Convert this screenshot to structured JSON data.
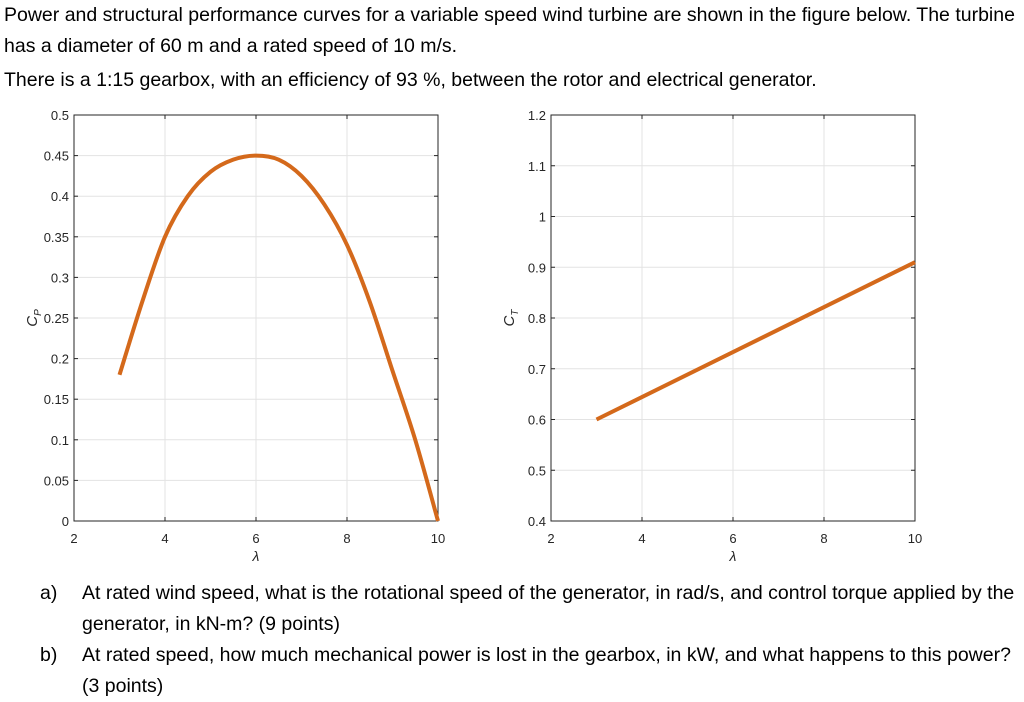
{
  "intro": {
    "line1": "Power and structural performance curves for a variable speed wind turbine are shown in the figure below. The turbine has a diameter of 60 m and a rated speed of 10 m/s.",
    "line2": "There is a 1:15 gearbox, with an efficiency of 93 %, between the rotor and electrical generator."
  },
  "chart_data": [
    {
      "type": "line",
      "xlabel": "λ",
      "ylabel": "C_P",
      "xlim": [
        2,
        10
      ],
      "ylim": [
        0,
        0.5
      ],
      "xticks": [
        "2",
        "4",
        "6",
        "8",
        "10"
      ],
      "yticks": [
        "0",
        "0.05",
        "0.1",
        "0.15",
        "0.2",
        "0.25",
        "0.3",
        "0.35",
        "0.4",
        "0.45",
        "0.5"
      ],
      "grid": true,
      "color": "#d4691b",
      "series": [
        {
          "x": [
            3.0,
            3.5,
            4.0,
            4.5,
            5.0,
            5.5,
            6.0,
            6.5,
            7.0,
            7.5,
            8.0,
            8.5,
            9.0,
            9.5,
            10.0
          ],
          "y": [
            0.18,
            0.27,
            0.35,
            0.4,
            0.43,
            0.445,
            0.45,
            0.445,
            0.425,
            0.39,
            0.34,
            0.27,
            0.185,
            0.1,
            0.0
          ]
        }
      ]
    },
    {
      "type": "line",
      "xlabel": "λ",
      "ylabel": "C_T",
      "xlim": [
        2,
        10
      ],
      "ylim": [
        0.4,
        1.2
      ],
      "xticks": [
        "2",
        "4",
        "6",
        "8",
        "10"
      ],
      "yticks": [
        "0.4",
        "0.5",
        "0.6",
        "0.7",
        "0.8",
        "0.9",
        "1",
        "1.1",
        "1.2"
      ],
      "grid": true,
      "color": "#d4691b",
      "series": [
        {
          "x": [
            3,
            10
          ],
          "y": [
            0.6,
            0.91
          ]
        }
      ]
    }
  ],
  "questions": [
    {
      "label": "a)",
      "text": "At rated wind speed, what is the rotational speed of the generator, in rad/s, and control torque applied by the generator, in kN-m? (9 points)"
    },
    {
      "label": "b)",
      "text": "At rated speed, how much mechanical power is lost in the gearbox, in kW, and what happens to this power? (3 points)"
    }
  ]
}
